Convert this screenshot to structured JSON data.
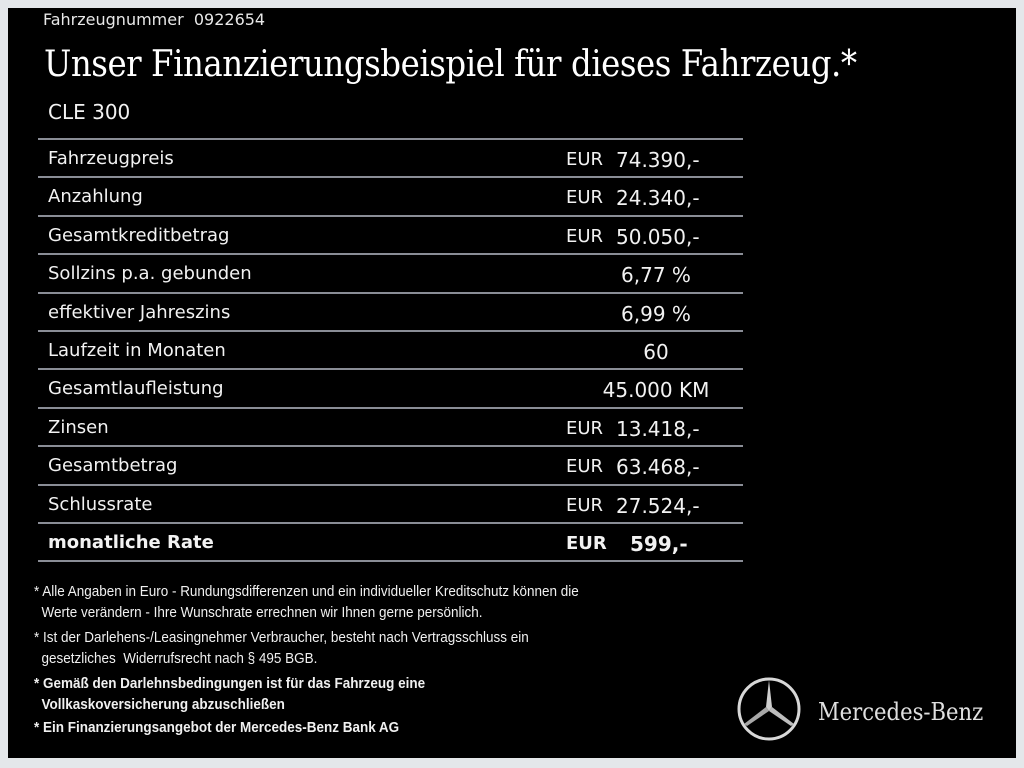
{
  "vehicle_number_label": "Fahrzeugnummer  0922654",
  "title": "Unser Finanzierungsbeispiel für dieses Fahrzeug.*",
  "model": "CLE 300",
  "rows": [
    {
      "label": "Fahrzeugpreis",
      "currency": "EUR",
      "value": "74.390,-"
    },
    {
      "label": "Anzahlung",
      "currency": "EUR",
      "value": "24.340,-"
    },
    {
      "label": "Gesamtkreditbetrag",
      "currency": "EUR",
      "value": "50.050,-"
    },
    {
      "label": "Sollzins p.a. gebunden",
      "value": "6,77 %"
    },
    {
      "label": "effektiver Jahreszins",
      "value": "6,99 %"
    },
    {
      "label": "Laufzeit in Monaten",
      "value": "60"
    },
    {
      "label": "Gesamtlaufleistung",
      "value": "45.000 KM"
    },
    {
      "label": "Zinsen",
      "currency": "EUR",
      "value": "13.418,-"
    },
    {
      "label": "Gesamtbetrag",
      "currency": "EUR",
      "value": "63.468,-"
    },
    {
      "label": "Schlussrate",
      "currency": "EUR",
      "value": "27.524,-"
    },
    {
      "label": "monatliche Rate",
      "currency": "EUR",
      "value": "599,-"
    }
  ],
  "notes": [
    {
      "l1": "* Alle Angaben in Euro - Rundungsdifferenzen und ein individueller Kreditschutz können die",
      "l2": "  Werte verändern - Ihre Wunschrate errechnen wir Ihnen gerne persönlich."
    },
    {
      "l1": "* Ist der Darlehens-/Leasingnehmer Verbraucher, besteht nach Vertragsschluss ein",
      "l2": "  gesetzliches  Widerrufsrecht nach § 495 BGB."
    },
    {
      "l1": "* Gemäß den Darlehnsbedingungen ist für das Fahrzeug eine",
      "l2": "  Vollkaskoversicherung abzuschließen"
    },
    {
      "l1": "* Ein Finanzierungsangebot der Mercedes-Benz Bank AG"
    }
  ],
  "brand": "Mercedes-Benz",
  "logo_icon": "mercedes-star-icon"
}
